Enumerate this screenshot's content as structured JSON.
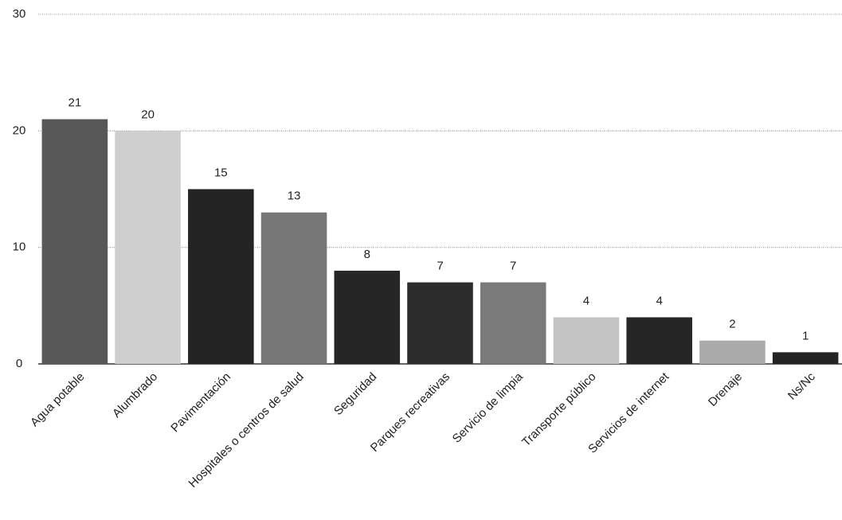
{
  "chart_data": {
    "type": "bar",
    "categories": [
      "Agua potable",
      "Alumbrado",
      "Pavimentación",
      "Hospitales o centros de salud",
      "Seguridad",
      "Parques recreativas",
      "Servicio de limpia",
      "Transporte público",
      "Servicios de internet",
      "Drenaje",
      "Ns/Nc"
    ],
    "values": [
      21,
      20,
      15,
      13,
      8,
      7,
      7,
      4,
      4,
      2,
      1
    ],
    "colors": [
      "#585858",
      "#cfcfcf",
      "#242424",
      "#777777",
      "#262626",
      "#2c2c2c",
      "#7a7a7a",
      "#c4c4c4",
      "#262626",
      "#aaaaaa",
      "#242424"
    ],
    "ylim": [
      0,
      30
    ],
    "yticks": [
      0,
      10,
      20,
      30
    ],
    "grid": true
  }
}
